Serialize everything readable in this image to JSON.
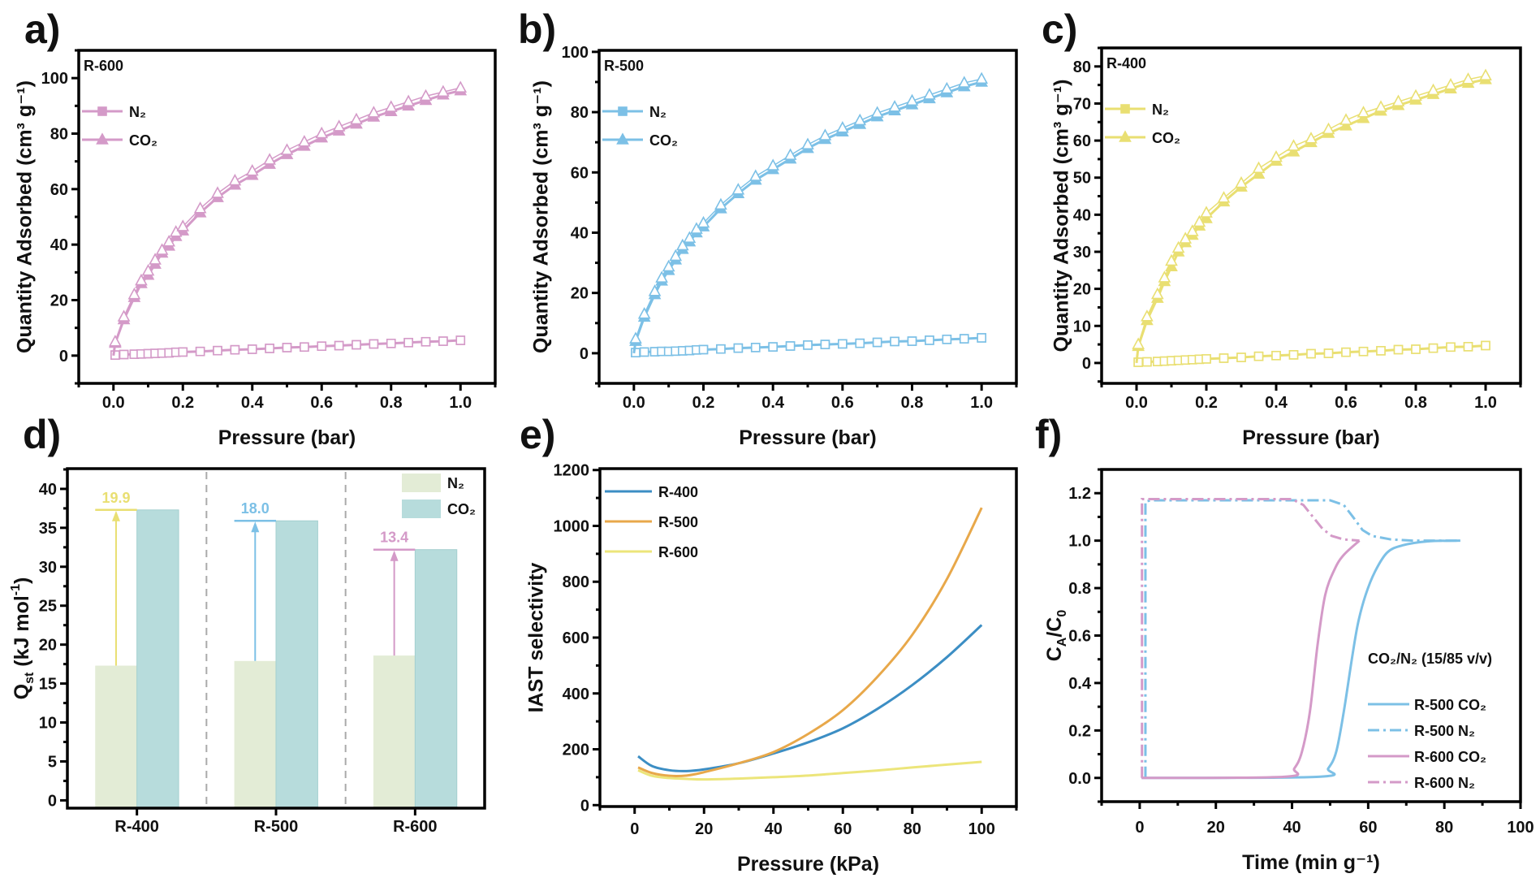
{
  "chart_data": [
    {
      "panel": "a)",
      "type": "line",
      "sample_label": "R-600",
      "xlabel": "Pressure (bar)",
      "ylabel": "Quantity Adsorbed (cm³ g⁻¹)",
      "xlim": [
        -0.1,
        1.1
      ],
      "ylim": [
        -10,
        110
      ],
      "xticks": [
        0,
        0.2,
        0.4,
        0.6,
        0.8,
        1.0
      ],
      "xtick_labels": [
        "0.0",
        "0.2",
        "0.4",
        "0.6",
        "0.8",
        "1.0"
      ],
      "yticks": [
        0,
        20,
        40,
        60,
        80,
        100
      ],
      "ytick_labels": [
        "0",
        "20",
        "40",
        "60",
        "80",
        "100"
      ],
      "color": "#d49ac8",
      "legend": "top-left",
      "series": [
        {
          "name": "N₂",
          "marker": "square",
          "x": [
            0.005,
            0.03,
            0.06,
            0.08,
            0.1,
            0.12,
            0.14,
            0.16,
            0.18,
            0.2,
            0.25,
            0.3,
            0.35,
            0.4,
            0.45,
            0.5,
            0.55,
            0.6,
            0.65,
            0.7,
            0.75,
            0.8,
            0.85,
            0.9,
            0.95,
            1.0
          ],
          "adsorption": [
            0.2,
            0.4,
            0.5,
            0.6,
            0.7,
            0.8,
            0.9,
            1.0,
            1.2,
            1.3,
            1.5,
            1.8,
            2.1,
            2.3,
            2.6,
            2.9,
            3.1,
            3.4,
            3.6,
            3.9,
            4.2,
            4.4,
            4.7,
            5.0,
            5.2,
            5.5
          ],
          "desorption": [
            0.2,
            0.4,
            0.5,
            0.6,
            0.7,
            0.8,
            0.9,
            1.0,
            1.2,
            1.3,
            1.5,
            1.8,
            2.1,
            2.3,
            2.6,
            2.9,
            3.1,
            3.4,
            3.6,
            3.9,
            4.2,
            4.4,
            4.7,
            5.0,
            5.2,
            5.5
          ]
        },
        {
          "name": "CO₂",
          "marker": "triangle",
          "x": [
            0.005,
            0.03,
            0.06,
            0.08,
            0.1,
            0.12,
            0.14,
            0.16,
            0.18,
            0.2,
            0.25,
            0.3,
            0.35,
            0.4,
            0.45,
            0.5,
            0.55,
            0.6,
            0.65,
            0.7,
            0.75,
            0.8,
            0.85,
            0.9,
            0.95,
            1.0
          ],
          "adsorption": [
            4.5,
            13,
            21,
            26,
            29,
            33,
            37,
            39.5,
            43,
            45,
            51.5,
            57,
            61.5,
            65,
            69,
            72.5,
            75.5,
            78.5,
            81,
            83.5,
            86,
            88,
            90,
            92,
            94,
            95.5
          ],
          "desorption": [
            5,
            14,
            22,
            27,
            30.5,
            34.5,
            38,
            41,
            44.5,
            46.5,
            53,
            58.5,
            63,
            66.5,
            70.5,
            74,
            77,
            80,
            82.5,
            85,
            87.5,
            89.5,
            91.5,
            93.5,
            95,
            96.5
          ]
        }
      ]
    },
    {
      "panel": "b)",
      "type": "line",
      "sample_label": "R-500",
      "xlabel": "Pressure (bar)",
      "ylabel": "Quantity Adsorbed (cm³ g⁻¹)",
      "xlim": [
        -0.1,
        1.1
      ],
      "ylim": [
        -10,
        100.5
      ],
      "xticks": [
        0,
        0.2,
        0.4,
        0.6,
        0.8,
        1.0
      ],
      "xtick_labels": [
        "0.0",
        "0.2",
        "0.4",
        "0.6",
        "0.8",
        "1.0"
      ],
      "yticks": [
        0,
        20,
        40,
        60,
        80,
        100
      ],
      "ytick_labels": [
        "0",
        "20",
        "40",
        "60",
        "80",
        "100"
      ],
      "color": "#7cc0e6",
      "legend": "top-left",
      "series": [
        {
          "name": "N₂",
          "marker": "square",
          "x": [
            0.005,
            0.03,
            0.06,
            0.08,
            0.1,
            0.12,
            0.14,
            0.16,
            0.18,
            0.2,
            0.25,
            0.3,
            0.35,
            0.4,
            0.45,
            0.5,
            0.55,
            0.6,
            0.65,
            0.7,
            0.75,
            0.8,
            0.85,
            0.9,
            0.95,
            1.0
          ],
          "adsorption": [
            0.2,
            0.4,
            0.5,
            0.6,
            0.6,
            0.7,
            0.8,
            0.9,
            1.1,
            1.2,
            1.4,
            1.7,
            1.9,
            2.1,
            2.4,
            2.7,
            2.9,
            3.1,
            3.3,
            3.6,
            3.9,
            4.0,
            4.3,
            4.6,
            4.8,
            5.1
          ],
          "desorption": [
            0.2,
            0.4,
            0.5,
            0.6,
            0.6,
            0.7,
            0.8,
            0.9,
            1.1,
            1.2,
            1.4,
            1.7,
            1.9,
            2.1,
            2.4,
            2.7,
            2.9,
            3.1,
            3.3,
            3.6,
            3.9,
            4.0,
            4.3,
            4.6,
            4.8,
            5.1
          ]
        },
        {
          "name": "CO₂",
          "marker": "triangle",
          "x": [
            0.005,
            0.03,
            0.06,
            0.08,
            0.1,
            0.12,
            0.14,
            0.16,
            0.18,
            0.2,
            0.25,
            0.3,
            0.35,
            0.4,
            0.45,
            0.5,
            0.55,
            0.6,
            0.65,
            0.7,
            0.75,
            0.8,
            0.85,
            0.9,
            0.95,
            1.0
          ],
          "adsorption": [
            4,
            12,
            19.5,
            24,
            27.5,
            31,
            34.5,
            37,
            40,
            42,
            48,
            53,
            57.5,
            61,
            64.5,
            68,
            71,
            73.5,
            76,
            78.5,
            80.5,
            82.5,
            84.5,
            86.5,
            88.5,
            90
          ],
          "desorption": [
            4.8,
            13,
            20.5,
            25,
            28.7,
            32.2,
            35.7,
            38.2,
            41.2,
            43.2,
            49.2,
            54.2,
            58.7,
            62.2,
            65.7,
            69.2,
            72.2,
            74.7,
            77.2,
            79.7,
            81.7,
            83.7,
            85.7,
            87.7,
            89.7,
            91
          ]
        }
      ]
    },
    {
      "panel": "c)",
      "type": "line",
      "sample_label": "R-400",
      "xlabel": "Pressure (bar)",
      "ylabel": "Quantity Adsorbed (cm³ g⁻¹)",
      "xlim": [
        -0.1,
        1.1
      ],
      "ylim": [
        -5.5,
        85
      ],
      "xticks": [
        0,
        0.2,
        0.4,
        0.6,
        0.8,
        1.0
      ],
      "xtick_labels": [
        "0.0",
        "0.2",
        "0.4",
        "0.6",
        "0.8",
        "1.0"
      ],
      "yticks": [
        0,
        10,
        20,
        30,
        40,
        50,
        60,
        70,
        80
      ],
      "ytick_labels": [
        "0",
        "10",
        "20",
        "30",
        "40",
        "50",
        "60",
        "70",
        "80"
      ],
      "color": "#e9df72",
      "legend": "top-left",
      "series": [
        {
          "name": "N₂",
          "marker": "square",
          "x": [
            0.005,
            0.03,
            0.06,
            0.08,
            0.1,
            0.12,
            0.14,
            0.16,
            0.18,
            0.2,
            0.25,
            0.3,
            0.35,
            0.4,
            0.45,
            0.5,
            0.55,
            0.6,
            0.65,
            0.7,
            0.75,
            0.8,
            0.85,
            0.9,
            0.95,
            1.0
          ],
          "adsorption": [
            0.2,
            0.3,
            0.4,
            0.5,
            0.6,
            0.7,
            0.8,
            0.9,
            1.0,
            1.1,
            1.3,
            1.5,
            1.8,
            2.0,
            2.2,
            2.5,
            2.6,
            2.9,
            3.1,
            3.3,
            3.6,
            3.7,
            4.0,
            4.3,
            4.4,
            4.7
          ],
          "desorption": [
            0.2,
            0.3,
            0.4,
            0.5,
            0.6,
            0.7,
            0.8,
            0.9,
            1.0,
            1.1,
            1.3,
            1.5,
            1.8,
            2.0,
            2.2,
            2.5,
            2.6,
            2.9,
            3.1,
            3.3,
            3.6,
            3.7,
            4.0,
            4.3,
            4.4,
            4.7
          ]
        },
        {
          "name": "CO₂",
          "marker": "triangle",
          "x": [
            0.005,
            0.03,
            0.06,
            0.08,
            0.1,
            0.12,
            0.14,
            0.16,
            0.18,
            0.2,
            0.25,
            0.3,
            0.35,
            0.4,
            0.45,
            0.5,
            0.55,
            0.6,
            0.65,
            0.7,
            0.75,
            0.8,
            0.85,
            0.9,
            0.95,
            1.0
          ],
          "adsorption": [
            4.5,
            11.5,
            17.5,
            22,
            26,
            30,
            32.5,
            34.5,
            37,
            39,
            43.5,
            47.5,
            51,
            54.5,
            57,
            59.5,
            62,
            64,
            66,
            68,
            69.5,
            71,
            72.5,
            74,
            75.5,
            76.5
          ],
          "desorption": [
            5,
            12.5,
            18.5,
            23,
            27.5,
            31,
            33.5,
            35.5,
            38,
            40.5,
            44.5,
            48.5,
            52.5,
            55.5,
            58.5,
            60.5,
            63,
            65.5,
            67.5,
            69,
            70.5,
            72,
            73.5,
            75,
            76.5,
            77.5
          ]
        }
      ]
    },
    {
      "panel": "d)",
      "type": "bar",
      "ylabel_parts": [
        {
          "t": "Q",
          "s": ""
        },
        {
          "t": "st",
          "s": "sub"
        },
        {
          "t": " (kJ mol",
          "s": ""
        },
        {
          "t": "-1",
          "s": "sup"
        },
        {
          "t": ")",
          "s": ""
        }
      ],
      "categories": [
        "R-400",
        "R-500",
        "R-600"
      ],
      "ylim": [
        -1,
        42.6
      ],
      "yticks": [
        0,
        5,
        10,
        15,
        20,
        25,
        30,
        35,
        40
      ],
      "ytick_labels": [
        "0",
        "5",
        "10",
        "15",
        "20",
        "25",
        "30",
        "35",
        "40"
      ],
      "legend": "top-right",
      "series": [
        {
          "name": "N₂",
          "values": [
            17.3,
            17.9,
            18.6
          ],
          "color": "#e3ecd6"
        },
        {
          "name": "CO₂",
          "values": [
            37.3,
            35.9,
            32.2
          ],
          "color": "#b7dcdc"
        }
      ],
      "annotations": [
        {
          "label": "19.9",
          "color": "#e9df72"
        },
        {
          "label": "18.0",
          "color": "#7cc0e6"
        },
        {
          "label": "13.4",
          "color": "#d49ac8"
        }
      ]
    },
    {
      "panel": "e)",
      "type": "line",
      "xlabel": "Pressure (kPa)",
      "ylabel": "IAST selectivity",
      "xlim": [
        -10,
        110
      ],
      "ylim": [
        -5,
        1205
      ],
      "xticks": [
        0,
        20,
        40,
        60,
        80,
        100
      ],
      "xtick_labels": [
        "0",
        "20",
        "40",
        "60",
        "80",
        "100"
      ],
      "yticks": [
        0,
        200,
        400,
        600,
        800,
        1000,
        1200
      ],
      "ytick_labels": [
        "0",
        "200",
        "400",
        "600",
        "800",
        "1000",
        "1200"
      ],
      "legend": "top-left",
      "x": [
        1,
        5,
        10,
        15,
        20,
        30,
        40,
        50,
        60,
        70,
        80,
        90,
        100
      ],
      "series": [
        {
          "name": "R-400",
          "color": "#3c8ec4",
          "values": [
            175,
            140,
            125,
            122,
            128,
            150,
            185,
            225,
            275,
            345,
            430,
            530,
            645
          ]
        },
        {
          "name": "R-500",
          "color": "#e8a84a",
          "values": [
            135,
            115,
            105,
            106,
            118,
            150,
            190,
            255,
            340,
            460,
            610,
            810,
            1065
          ]
        },
        {
          "name": "R-600",
          "color": "#ece57a",
          "values": [
            125,
            105,
            97,
            94,
            92,
            95,
            100,
            106,
            115,
            124,
            135,
            145,
            155
          ]
        }
      ]
    },
    {
      "panel": "f)",
      "type": "line",
      "xlabel": "Time (min g⁻¹)",
      "ylabel_parts": [
        {
          "t": "C",
          "s": ""
        },
        {
          "t": "A",
          "s": "sub"
        },
        {
          "t": "/C",
          "s": ""
        },
        {
          "t": "0",
          "s": "sub"
        }
      ],
      "xlim": [
        -10,
        100
      ],
      "ylim": [
        -0.1,
        1.3
      ],
      "xticks": [
        0,
        20,
        40,
        60,
        80,
        100
      ],
      "xtick_labels": [
        "0",
        "20",
        "40",
        "60",
        "80",
        "100"
      ],
      "yticks": [
        0,
        0.2,
        0.4,
        0.6,
        0.8,
        1.0,
        1.2
      ],
      "ytick_labels": [
        "0.0",
        "0.2",
        "0.4",
        "0.6",
        "0.8",
        "1.0",
        "1.2"
      ],
      "annotation": "CO₂/N₂ (15/85 v/v)",
      "legend": "bottom-right",
      "series": [
        {
          "name": "R-500 CO₂",
          "color": "#7cc0e6",
          "style": "solid",
          "x": [
            0.5,
            47,
            49.5,
            51.6,
            53.6,
            55.7,
            57.3,
            59.3,
            61.8,
            65,
            69,
            75.7,
            84.2
          ],
          "y": [
            0,
            0.005,
            0.04,
            0.11,
            0.28,
            0.5,
            0.65,
            0.77,
            0.87,
            0.95,
            0.98,
            0.997,
            1.0
          ]
        },
        {
          "name": "R-500 N₂",
          "color": "#7cc0e6",
          "style": "dash-dot",
          "x": [
            1.5,
            1.5,
            3,
            50,
            53.6,
            56,
            58.5,
            61,
            66,
            71.6,
            84
          ],
          "y": [
            0,
            1.165,
            1.17,
            1.17,
            1.15,
            1.1,
            1.045,
            1.02,
            1.005,
            1.0,
            1.0
          ]
        },
        {
          "name": "R-600 CO₂",
          "color": "#d49ac8",
          "style": "solid",
          "x": [
            0.5,
            38,
            40.6,
            42.6,
            44.7,
            46.7,
            48.7,
            51.2,
            53.6,
            57.7
          ],
          "y": [
            0,
            0.005,
            0.04,
            0.11,
            0.28,
            0.56,
            0.77,
            0.88,
            0.94,
            1.0
          ]
        },
        {
          "name": "R-600 N₂",
          "color": "#d49ac8",
          "style": "dash-dot",
          "x": [
            0.6,
            0.6,
            2,
            40,
            43,
            45.5,
            48,
            50.4,
            53.6,
            57.7
          ],
          "y": [
            0,
            1.175,
            1.175,
            1.175,
            1.15,
            1.1,
            1.05,
            1.02,
            1.005,
            1.0
          ]
        }
      ]
    }
  ]
}
